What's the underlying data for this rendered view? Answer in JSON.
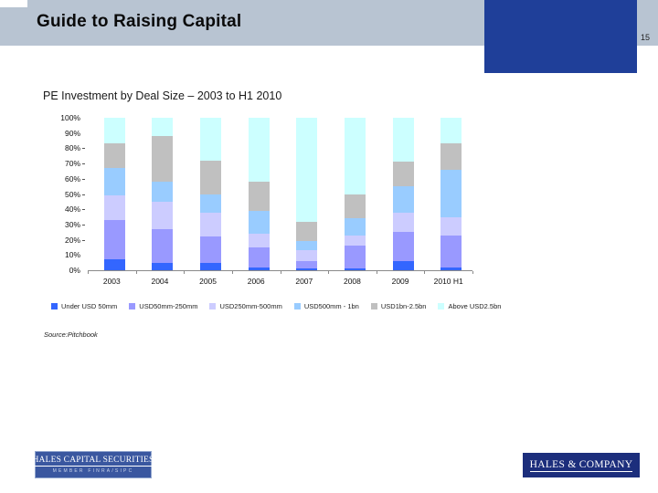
{
  "header": {
    "title": "Guide to Raising Capital",
    "page_number": "15"
  },
  "chart_data": {
    "type": "bar",
    "stacked": true,
    "title": "PE Investment by Deal Size – 2003 to H1 2010",
    "source": "Source:Pitchbook",
    "categories": [
      "2003",
      "2004",
      "2005",
      "2006",
      "2007",
      "2008",
      "2009",
      "2010 H1"
    ],
    "series": [
      {
        "name": "Under USD 50mm",
        "color": "#3366FF",
        "values": [
          7,
          5,
          5,
          2,
          1,
          1,
          6,
          2
        ]
      },
      {
        "name": "USD50mm-250mm",
        "color": "#9999FF",
        "values": [
          26,
          22,
          17,
          13,
          5,
          15,
          19,
          21
        ]
      },
      {
        "name": "USD250mm-500mm",
        "color": "#CCCCFF",
        "values": [
          16,
          18,
          16,
          9,
          7,
          7,
          13,
          12
        ]
      },
      {
        "name": "USD500mm - 1bn",
        "color": "#99CCFF",
        "values": [
          18,
          13,
          12,
          15,
          6,
          11,
          17,
          31
        ]
      },
      {
        "name": "USD1bn-2.5bn",
        "color": "#C0C0C0",
        "values": [
          16,
          30,
          22,
          19,
          13,
          16,
          16,
          17
        ]
      },
      {
        "name": "Above USD2.5bn",
        "color": "#CCFFFF",
        "values": [
          17,
          12,
          28,
          42,
          68,
          50,
          29,
          17
        ]
      }
    ],
    "y_ticks": [
      "100%",
      "90%",
      "80%",
      "70%",
      "60%",
      "50%",
      "40%",
      "30%",
      "20%",
      "10%",
      "0%"
    ],
    "ylim": [
      0,
      100
    ],
    "unit": "%",
    "legend_position": "bottom",
    "grid": false
  },
  "footer": {
    "logo_left": {
      "line1": "HALES CAPITAL SECURITIES",
      "line2": "MEMBER FINRA/SIPC"
    },
    "logo_right": {
      "text": "HALES & COMPANY"
    }
  },
  "colors": {
    "header_bar": "#b8c4d2",
    "accent_box": "#1f3f99",
    "axis": "#8a8a8a",
    "logo_left_bg": "#3a57a0",
    "logo_right_bg": "#1c2e7c"
  }
}
